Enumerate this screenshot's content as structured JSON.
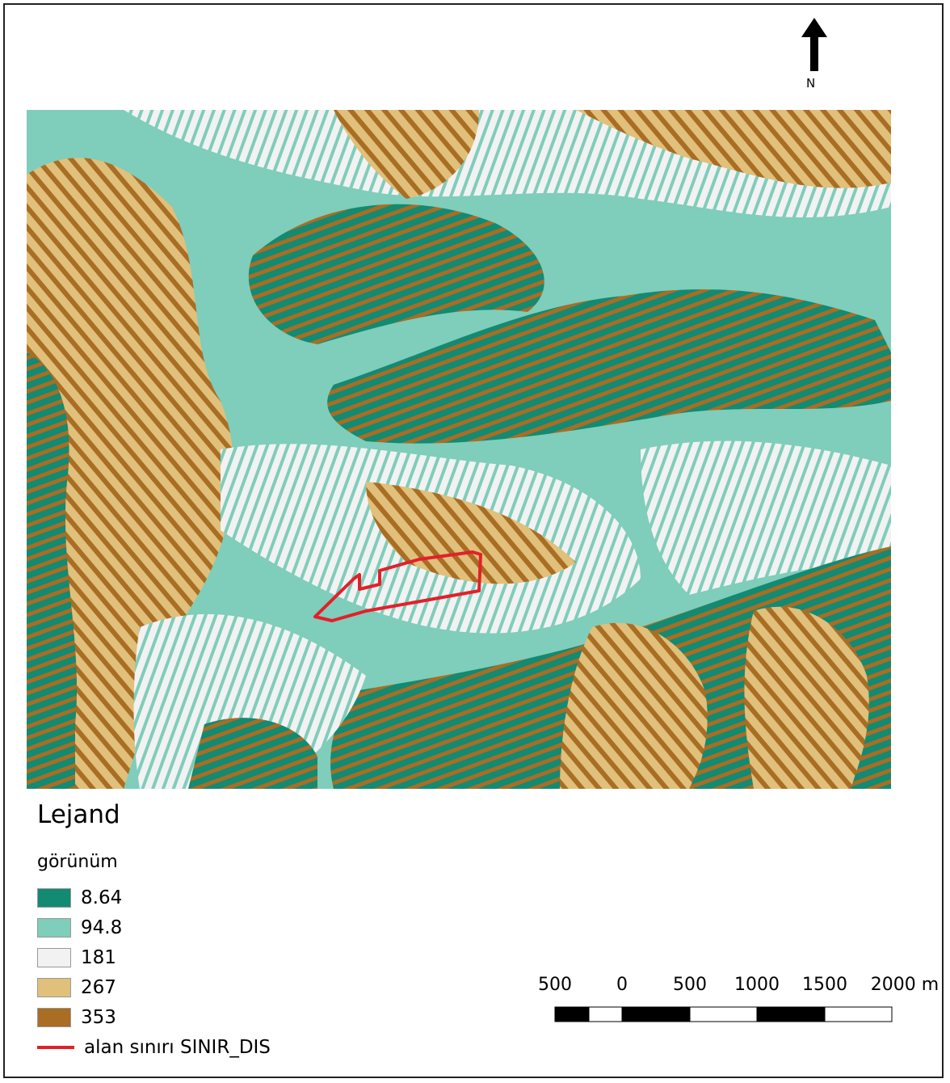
{
  "north_arrow": {
    "label": "N"
  },
  "legend": {
    "title": "Lejand",
    "group": "görünüm",
    "classes": [
      {
        "label": "8.64",
        "color": "#138a72"
      },
      {
        "label": "94.8",
        "color": "#7fcdbb"
      },
      {
        "label": "181",
        "color": "#f2f2f2"
      },
      {
        "label": "267",
        "color": "#e0c07a"
      },
      {
        "label": "353",
        "color": "#a96d24"
      }
    ],
    "boundary": {
      "label": "alan sınırı SINIR_DIS",
      "color": "#e3202a"
    }
  },
  "scale_bar": {
    "labels": [
      "500",
      "0",
      "500",
      "1000",
      "1500",
      "2000 m"
    ]
  },
  "colors": {
    "teal_dark": "#138a72",
    "teal_light": "#7fcdbb",
    "white": "#f2f2f2",
    "tan": "#e0c07a",
    "brown": "#a96d24",
    "boundary": "#e3202a"
  }
}
